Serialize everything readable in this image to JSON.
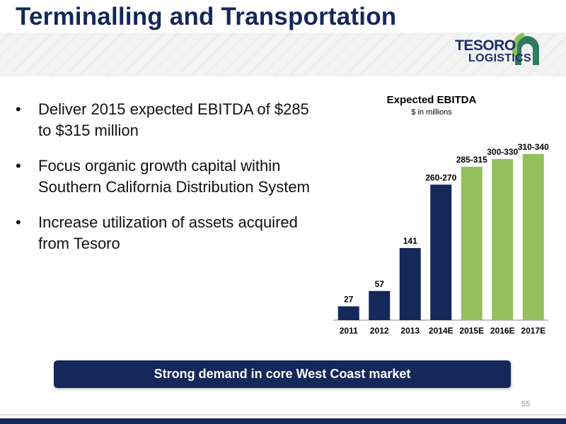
{
  "slide": {
    "title": "Terminalling and Transportation",
    "page_number": "55"
  },
  "logo": {
    "line1": "TESORO",
    "line2": "LOGISTICS"
  },
  "bullets": [
    "Deliver 2015 expected EBITDA of $285 to $315 million",
    "Focus organic growth capital within Southern California Distribution System",
    "Increase utilization of assets acquired from Tesoro"
  ],
  "banner": {
    "text": "Strong demand in core West Coast market"
  },
  "colors": {
    "navy": "#14285a",
    "green": "#93bf5c"
  },
  "chart_data": {
    "type": "bar",
    "title": "Expected EBITDA",
    "subtitle": "$ in millions",
    "categories": [
      "2011",
      "2012",
      "2013",
      "2014E",
      "2015E",
      "2016E",
      "2017E"
    ],
    "values": [
      27,
      57,
      141,
      [
        260,
        270
      ],
      [
        285,
        315
      ],
      [
        300,
        330
      ],
      [
        310,
        340
      ]
    ],
    "labels": [
      "27",
      "57",
      "141",
      "260-270",
      "285-315",
      "300-330",
      "310-340"
    ],
    "bar_colors": [
      "#14285a",
      "#14285a",
      "#14285a",
      "#14285a",
      "#93bf5c",
      "#93bf5c",
      "#93bf5c"
    ],
    "ylim": [
      0,
      340
    ],
    "grid": false
  }
}
